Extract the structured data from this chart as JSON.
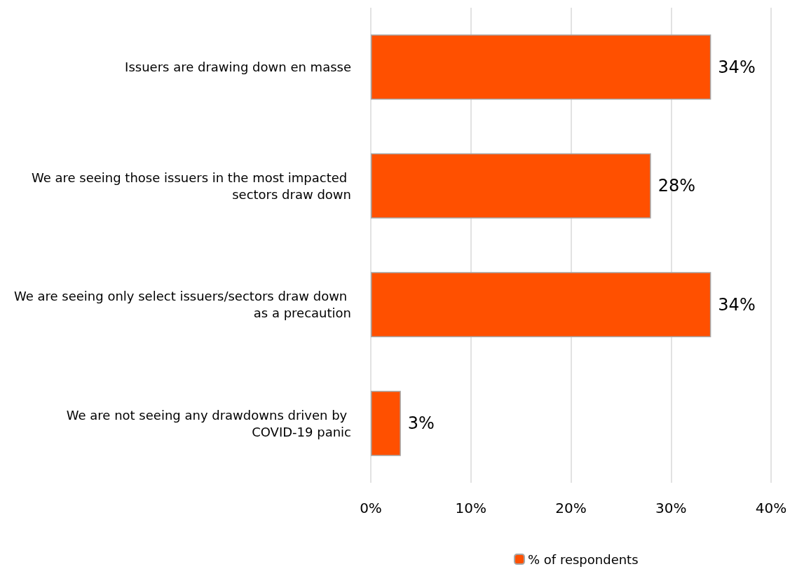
{
  "chart_data": {
    "type": "bar",
    "orientation": "horizontal",
    "categories": [
      "Issuers are drawing down en masse",
      "We are seeing those issuers in the most impacted sectors draw down",
      "We are seeing only select issuers/sectors draw down as a precaution",
      "We are not seeing any drawdowns driven by COVID-19 panic"
    ],
    "series": [
      {
        "name": "% of respondents",
        "color": "#ff5000",
        "values": [
          34,
          28,
          34,
          3
        ],
        "value_labels": [
          "34%",
          "28%",
          "34%",
          "3%"
        ]
      }
    ],
    "xlim": [
      0,
      40
    ],
    "xticks": [
      {
        "value": 0,
        "label": "0%"
      },
      {
        "value": 10,
        "label": "10%"
      },
      {
        "value": 20,
        "label": "20%"
      },
      {
        "value": 30,
        "label": "30%"
      },
      {
        "value": 40,
        "label": "40%"
      }
    ],
    "grid": "x",
    "legend": "bottom"
  }
}
